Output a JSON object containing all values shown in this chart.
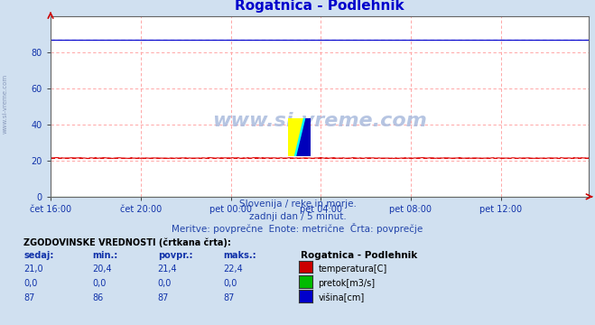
{
  "title": "Rogatnica - Podlehnik",
  "title_color": "#0000cc",
  "bg_color": "#d0e0f0",
  "plot_bg_color": "#ffffff",
  "grid_color": "#ff9999",
  "x_labels": [
    "čet 16:00",
    "čet 20:00",
    "pet 00:00",
    "pet 04:00",
    "pet 08:00",
    "pet 12:00"
  ],
  "x_ticks_pos": [
    0,
    48,
    96,
    144,
    192,
    240
  ],
  "n_points": 288,
  "ylim": [
    0,
    100
  ],
  "yticks": [
    0,
    20,
    40,
    60,
    80
  ],
  "temp_value": 21.4,
  "flow_value": 0.0,
  "height_value": 87.0,
  "temp_color": "#dd0000",
  "flow_color": "#00aa00",
  "height_color": "#0000cc",
  "subtitle1": "Slovenija / reke in morje.",
  "subtitle2": "zadnji dan / 5 minut.",
  "subtitle3": "Meritve: povprečne  Enote: metrične  Črta: povprečje",
  "subtitle_color": "#2244aa",
  "watermark": "www.si-vreme.com",
  "watermark_color": "#aabbdd",
  "legend_title": "Rogatnica - Podlehnik",
  "legend_items": [
    "temperatura[C]",
    "pretok[m3/s]",
    "višina[cm]"
  ],
  "legend_colors": [
    "#cc0000",
    "#00bb00",
    "#0000cc"
  ],
  "table_header": "ZGODOVINSKE VREDNOSTI (črtkana črta):",
  "table_cols": [
    "sedaj:",
    "min.:",
    "povpr.:",
    "maks.:"
  ],
  "table_data": [
    [
      "21,0",
      "20,4",
      "21,4",
      "22,4"
    ],
    [
      "0,0",
      "0,0",
      "0,0",
      "0,0"
    ],
    [
      "87",
      "86",
      "87",
      "87"
    ]
  ],
  "table_col_color": "#1133aa",
  "table_val_color": "#1133aa",
  "sidebar_text": "www.si-vreme.com",
  "sidebar_color": "#8899bb"
}
